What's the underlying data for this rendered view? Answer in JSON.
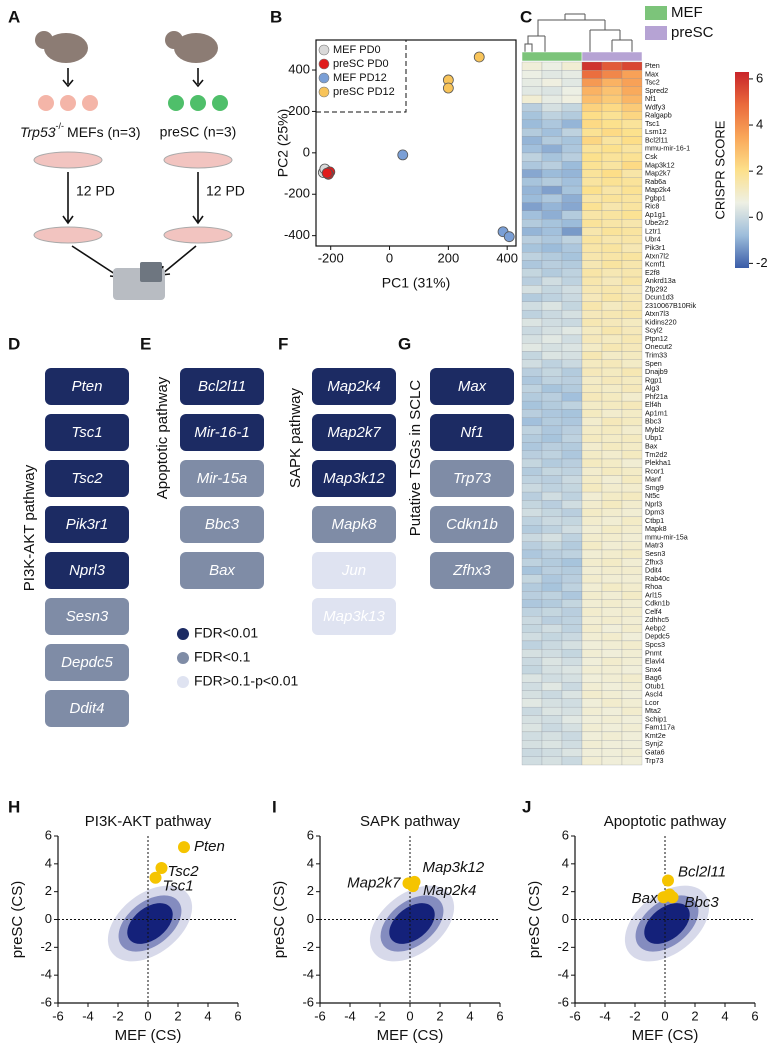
{
  "panel_labels": [
    "A",
    "B",
    "C",
    "D",
    "E",
    "F",
    "G",
    "H",
    "I",
    "J"
  ],
  "schematic": {
    "left_label": {
      "gene": "Trp53",
      "superscript": "-/-",
      "text": "MEFs (n=3)"
    },
    "right_label": "preSC (n=3)",
    "passage_labels": [
      "12 PD",
      "12 PD"
    ]
  },
  "pathways": {
    "legend": [
      {
        "label": "FDR<0.01",
        "color": "#1c2b63"
      },
      {
        "label": "FDR<0.1",
        "color": "#7f8ca6"
      },
      {
        "label": "FDR>0.1-p<0.01",
        "color": "#dfe3f1"
      }
    ],
    "groups": [
      {
        "title": "PI3K-AKT pathway",
        "genes": [
          {
            "name": "Pten",
            "color": "#1c2b63"
          },
          {
            "name": "Tsc1",
            "color": "#1c2b63"
          },
          {
            "name": "Tsc2",
            "color": "#1c2b63"
          },
          {
            "name": "Pik3r1",
            "color": "#1c2b63"
          },
          {
            "name": "Nprl3",
            "color": "#1c2b63"
          },
          {
            "name": "Sesn3",
            "color": "#7f8ca6"
          },
          {
            "name": "Depdc5",
            "color": "#7f8ca6"
          },
          {
            "name": "Ddit4",
            "color": "#7f8ca6"
          }
        ]
      },
      {
        "title": "Apoptotic pathway",
        "genes": [
          {
            "name": "Bcl2l11",
            "color": "#1c2b63"
          },
          {
            "name": "Mir-16-1",
            "color": "#1c2b63"
          },
          {
            "name": "Mir-15a",
            "color": "#7f8ca6"
          },
          {
            "name": "Bbc3",
            "color": "#7f8ca6"
          },
          {
            "name": "Bax",
            "color": "#7f8ca6"
          }
        ]
      },
      {
        "title": "SAPK pathway",
        "genes": [
          {
            "name": "Map2k4",
            "color": "#1c2b63"
          },
          {
            "name": "Map2k7",
            "color": "#1c2b63"
          },
          {
            "name": "Map3k12",
            "color": "#1c2b63"
          },
          {
            "name": "Mapk8",
            "color": "#7f8ca6"
          },
          {
            "name": "Jun",
            "color": "#dfe3f1"
          },
          {
            "name": "Map3k13",
            "color": "#dfe3f1"
          }
        ]
      },
      {
        "title": "Putative TSGs in SCLC",
        "genes": [
          {
            "name": "Max",
            "color": "#1c2b63"
          },
          {
            "name": "Nf1",
            "color": "#1c2b63"
          },
          {
            "name": "Trp73",
            "color": "#7f8ca6"
          },
          {
            "name": "Cdkn1b",
            "color": "#7f8ca6"
          },
          {
            "name": "Zfhx3",
            "color": "#7f8ca6"
          }
        ]
      }
    ]
  },
  "chart_data": [
    {
      "type": "scatter",
      "x_label": "PC1 (31%)",
      "y_label": "PC2 (25%)",
      "xlim": [
        -250,
        430
      ],
      "ylim": [
        -450,
        545
      ],
      "xticks": [
        -200,
        0,
        200,
        400
      ],
      "yticks": [
        -400,
        -200,
        0,
        200,
        400
      ],
      "series": [
        {
          "name": "MEF PD0",
          "color": "#d9d9d9",
          "x": [
            -215,
            -225,
            -220
          ],
          "y": [
            -85,
            -95,
            -78
          ]
        },
        {
          "name": "preSC PD0",
          "color": "#e01b1b",
          "x": [
            -203,
            -208,
            -212
          ],
          "y": [
            -92,
            -104,
            -98
          ]
        },
        {
          "name": "MEF PD12",
          "color": "#7a9fd6",
          "x": [
            45,
            386,
            407
          ],
          "y": [
            -10,
            -381,
            -405
          ]
        },
        {
          "name": "preSC PD12",
          "color": "#f8c45a",
          "x": [
            305,
            200,
            200
          ],
          "y": [
            463,
            352,
            313
          ]
        }
      ]
    },
    {
      "type": "heatmap",
      "colorbar_label": "CRISPR SCORE",
      "clim": [
        -2.2,
        6.3
      ],
      "colorbar_ticks": [
        6,
        4,
        2,
        0,
        -2
      ],
      "colormap": [
        "#3a5ca8",
        "#9dbddb",
        "#eef0e4",
        "#fde08a",
        "#f9a75a",
        "#ea6a3c",
        "#c8252a"
      ],
      "groups": [
        {
          "name": "MEF",
          "color": "#7cc47a",
          "columns": 3
        },
        {
          "name": "preSC",
          "color": "#b6a3d4",
          "columns": 3
        }
      ],
      "rows": [
        "Pten",
        "Max",
        "Tsc2",
        "Spred2",
        "Nf1",
        "Wdfy3",
        "Ralgapb",
        "Tsc1",
        "Lsm12",
        "Bcl2l11",
        "mmu-mir-16-1",
        "Csk",
        "Map3k12",
        "Map2k7",
        "Rab6a",
        "Map2k4",
        "Pgbp1",
        "Ric8",
        "Ap1g1",
        "Ube2r2",
        "Lztr1",
        "Ubr4",
        "Pik3r1",
        "Atxn7l2",
        "Kcmf1",
        "E2f8",
        "Ankrd13a",
        "Zfp292",
        "Dcun1d3",
        "2310067B10Rik",
        "Atxn7l3",
        "Kidins220",
        "Scyl2",
        "Ptpn12",
        "Onecut2",
        "Trim33",
        "Spen",
        "Dnajb9",
        "Rgp1",
        "Alg3",
        "Phf21a",
        "Elf4h",
        "Ap1m1",
        "Bbc3",
        "Mybl2",
        "Ubp1",
        "Bax",
        "Tm2d2",
        "Plekha1",
        "Rcor1",
        "Manf",
        "Smg9",
        "Nt5c",
        "Nprl3",
        "Dpm3",
        "Ctbp1",
        "Mapk8",
        "mmu-mir-15a",
        "Matr3",
        "Sesn3",
        "Zfhx3",
        "Ddit4",
        "Rab40c",
        "Rhoa",
        "Arl15",
        "Cdkn1b",
        "Celf4",
        "Zdhhc5",
        "Aebp2",
        "Depdc5",
        "Spcs3",
        "Pnmt",
        "Elavl4",
        "Snx4",
        "Bag6",
        "Otub1",
        "Ascl4",
        "Lcor",
        "Mta2",
        "Schip1",
        "Fam117a",
        "Kmt2e",
        "Synj2",
        "Gata6",
        "Trp73"
      ],
      "values": [
        [
          0.8,
          0.6,
          0.9,
          6,
          5.2,
          5.6
        ],
        [
          0.6,
          0.4,
          0.5,
          4.8,
          4.2,
          3.6
        ],
        [
          0.5,
          0.7,
          0.4,
          3.8,
          3.2,
          3.6
        ],
        [
          0.4,
          0.3,
          0.6,
          3.2,
          2.8,
          3.4
        ],
        [
          0.9,
          0.5,
          0.7,
          2.9,
          2.6,
          3.1
        ],
        [
          -0.3,
          0.2,
          -0.1,
          2.4,
          2.2,
          2.6
        ],
        [
          -0.6,
          -0.2,
          -0.4,
          2.1,
          1.9,
          2.3
        ],
        [
          -0.8,
          -0.5,
          -0.9,
          2.2,
          2,
          1.8
        ],
        [
          -0.4,
          -0.7,
          -0.2,
          1.9,
          2.2,
          2
        ],
        [
          -0.9,
          -0.4,
          -0.6,
          2.3,
          1.7,
          2.1
        ],
        [
          -0.7,
          -1,
          -0.5,
          1.8,
          2,
          1.7
        ],
        [
          -0.2,
          -0.6,
          -0.3,
          2,
          1.8,
          1.9
        ],
        [
          -0.5,
          -0.3,
          -0.8,
          1.9,
          1.7,
          2.2
        ],
        [
          -1.1,
          -0.8,
          -0.9,
          1.8,
          2.1,
          1.6
        ],
        [
          -0.6,
          -0.4,
          -0.7,
          1.7,
          1.9,
          1.8
        ],
        [
          -0.9,
          -1.2,
          -0.6,
          2,
          1.6,
          1.9
        ],
        [
          -0.8,
          -0.5,
          -1,
          1.6,
          1.8,
          1.7
        ],
        [
          -1.2,
          -0.9,
          -1.1,
          1.9,
          1.5,
          1.7
        ],
        [
          -0.7,
          -1,
          -0.4,
          1.6,
          1.7,
          1.9
        ],
        [
          -0.4,
          -0.6,
          -0.8,
          1.8,
          1.6,
          1.5
        ],
        [
          -0.9,
          -0.7,
          -1.3,
          1.5,
          1.8,
          1.7
        ],
        [
          -0.3,
          -0.5,
          -0.2,
          1.7,
          1.5,
          1.6
        ],
        [
          -0.6,
          -0.8,
          -0.5,
          1.6,
          1.7,
          1.4
        ],
        [
          -0.2,
          -0.4,
          -0.6,
          1.5,
          1.6,
          1.7
        ],
        [
          -0.5,
          -0.3,
          -0.4,
          1.4,
          1.7,
          1.5
        ],
        [
          -0.1,
          -0.4,
          -0.2,
          1.6,
          1.4,
          1.5
        ],
        [
          -0.3,
          0.1,
          -0.2,
          1.5,
          1.3,
          1.6
        ],
        [
          0.2,
          -0.1,
          0.1,
          1.4,
          1.5,
          1.3
        ],
        [
          -0.4,
          -0.2,
          0,
          1.3,
          1.6,
          1.4
        ],
        [
          0.1,
          0.3,
          -0.1,
          1.5,
          1.2,
          1.4
        ],
        [
          -0.2,
          0,
          0.2,
          1.3,
          1.4,
          1.5
        ],
        [
          0.3,
          0.1,
          0,
          1.4,
          1.3,
          1.2
        ],
        [
          0,
          0.2,
          0.4,
          1.2,
          1.5,
          1.3
        ],
        [
          0.2,
          0.4,
          0.1,
          1.3,
          1.2,
          1.4
        ],
        [
          0.4,
          0.2,
          0.3,
          1.1,
          1.4,
          1.3
        ],
        [
          -0.1,
          0.3,
          0.2,
          1.4,
          1.1,
          1.2
        ],
        [
          0.1,
          -0.2,
          0,
          1.2,
          1.3,
          1.1
        ],
        [
          -0.3,
          -0.1,
          -0.4,
          1.3,
          1.2,
          1.4
        ],
        [
          -0.5,
          -0.2,
          -0.3,
          1.1,
          1.3,
          1.2
        ],
        [
          -0.2,
          -0.6,
          -0.4,
          1.2,
          1.1,
          1.3
        ],
        [
          -0.4,
          -0.3,
          -0.7,
          1.3,
          1.2,
          1
        ],
        [
          -0.6,
          -0.4,
          -0.2,
          1.1,
          1.2,
          1.3
        ],
        [
          -0.3,
          -0.5,
          -0.6,
          1.2,
          1,
          1.1
        ],
        [
          -0.7,
          -0.4,
          -0.5,
          1,
          1.3,
          1.2
        ],
        [
          -0.2,
          -0.5,
          -0.3,
          1.1,
          1.2,
          1
        ],
        [
          -0.4,
          -0.6,
          -0.2,
          1.2,
          1.1,
          1.2
        ],
        [
          -0.5,
          -0.3,
          -0.4,
          1,
          1.2,
          1.1
        ],
        [
          -0.3,
          -0.2,
          -0.5,
          1.1,
          1,
          1.2
        ],
        [
          -0.1,
          -0.4,
          -0.3,
          1.2,
          1.1,
          0.9
        ],
        [
          -0.4,
          -0.1,
          -0.2,
          1,
          1.2,
          1.1
        ],
        [
          -0.2,
          -0.3,
          0,
          1.1,
          0.9,
          1.2
        ],
        [
          0,
          -0.2,
          -0.1,
          1.2,
          1,
          1
        ],
        [
          -0.3,
          0.1,
          -0.2,
          0.9,
          1.1,
          1.2
        ],
        [
          -0.1,
          -0.3,
          0.1,
          1,
          1.2,
          1
        ],
        [
          0.1,
          -0.1,
          -0.3,
          1.1,
          1,
          0.9
        ],
        [
          -0.2,
          0,
          -0.1,
          1,
          0.9,
          1.1
        ],
        [
          -0.4,
          -0.2,
          0.1,
          0.9,
          1.1,
          1
        ],
        [
          0,
          0.2,
          -0.2,
          1,
          1,
          0.9
        ],
        [
          -0.3,
          -0.1,
          -0.4,
          1.1,
          0.9,
          1
        ],
        [
          -0.5,
          -0.3,
          -0.2,
          0.9,
          1,
          1.1
        ],
        [
          -0.2,
          -0.4,
          -0.6,
          1,
          1.1,
          0.9
        ],
        [
          -0.6,
          -0.3,
          -0.4,
          0.9,
          1,
          1
        ],
        [
          -0.1,
          -0.5,
          -0.3,
          1,
          0.9,
          0.9
        ],
        [
          -0.4,
          -0.6,
          -0.2,
          0.9,
          1.1,
          1
        ],
        [
          -0.3,
          -0.2,
          -0.5,
          1,
          0.9,
          1.1
        ],
        [
          -0.5,
          -0.4,
          -0.1,
          0.9,
          1,
          0.9
        ],
        [
          -0.2,
          -0.1,
          -0.3,
          1,
          0.9,
          1
        ],
        [
          0,
          -0.3,
          -0.2,
          0.9,
          1,
          0.9
        ],
        [
          -0.1,
          0.1,
          -0.2,
          1,
          0.8,
          1
        ],
        [
          0.1,
          -0.1,
          0,
          0.9,
          1,
          0.8
        ],
        [
          -0.2,
          0,
          0.2,
          0.8,
          0.9,
          1
        ],
        [
          0.2,
          0.1,
          -0.1,
          0.9,
          0.8,
          0.9
        ],
        [
          0,
          0.3,
          0.1,
          0.8,
          1,
          0.9
        ],
        [
          -0.1,
          0.2,
          0.3,
          0.9,
          0.9,
          0.8
        ],
        [
          0.3,
          0.1,
          0.2,
          0.8,
          0.9,
          1
        ],
        [
          0.1,
          0.4,
          0,
          0.9,
          0.8,
          0.9
        ],
        [
          0.2,
          0,
          0.3,
          1,
          0.9,
          0.8
        ],
        [
          0.4,
          0.2,
          0.1,
          0.8,
          1,
          0.9
        ],
        [
          0,
          0.3,
          0.2,
          0.9,
          0.8,
          1
        ],
        [
          0.2,
          0.1,
          0.4,
          0.8,
          0.9,
          0.8
        ],
        [
          0.3,
          0,
          0.2,
          0.9,
          0.8,
          0.9
        ],
        [
          0.1,
          0.2,
          0,
          0.8,
          0.9,
          0.8
        ],
        [
          0.2,
          0.3,
          0.1,
          0.9,
          0.8,
          0.8
        ],
        [
          0,
          0.1,
          0.3,
          0.8,
          0.8,
          0.9
        ],
        [
          0.1,
          0.2,
          0,
          0.9,
          0.8,
          0.8
        ]
      ]
    },
    {
      "type": "scatter",
      "title": "PI3K-AKT pathway",
      "x_label": "MEF (CS)",
      "y_label": "preSC (CS)",
      "xlim": [
        -6,
        6
      ],
      "ylim": [
        -6,
        6
      ],
      "xticks": [
        -6,
        -4,
        -2,
        0,
        2,
        4,
        6
      ],
      "yticks": [
        -6,
        -4,
        -2,
        0,
        2,
        4,
        6
      ],
      "color": "#f5c400",
      "x": [
        2.4,
        0.9,
        0.5
      ],
      "y": [
        5.2,
        3.7,
        3.0
      ],
      "labels": [
        "Pten",
        "Tsc2",
        "Tsc1"
      ]
    },
    {
      "type": "scatter",
      "title": "SAPK pathway",
      "x_label": "MEF (CS)",
      "y_label": "preSC (CS)",
      "xlim": [
        -6,
        6
      ],
      "ylim": [
        -6,
        6
      ],
      "xticks": [
        -6,
        -4,
        -2,
        0,
        2,
        4,
        6
      ],
      "yticks": [
        -6,
        -4,
        -2,
        0,
        2,
        4,
        6
      ],
      "color": "#f5c400",
      "x": [
        0.3,
        -0.1,
        0.2
      ],
      "y": [
        2.7,
        2.6,
        2.4
      ],
      "labels": [
        "Map3k12",
        "Map2k7",
        "Map2k4"
      ]
    },
    {
      "type": "scatter",
      "title": "Apoptotic pathway",
      "x_label": "MEF (CS)",
      "y_label": "preSC (CS)",
      "xlim": [
        -6,
        6
      ],
      "ylim": [
        -6,
        6
      ],
      "xticks": [
        -6,
        -4,
        -2,
        0,
        2,
        4,
        6
      ],
      "yticks": [
        -6,
        -4,
        -2,
        0,
        2,
        4,
        6
      ],
      "color": "#f5c400",
      "x": [
        0.2,
        -0.1,
        0.5,
        0.3
      ],
      "y": [
        2.8,
        1.6,
        1.6,
        1.8
      ],
      "labels": [
        "Bcl2l11",
        "Bax",
        "Bbc3",
        null
      ]
    }
  ]
}
